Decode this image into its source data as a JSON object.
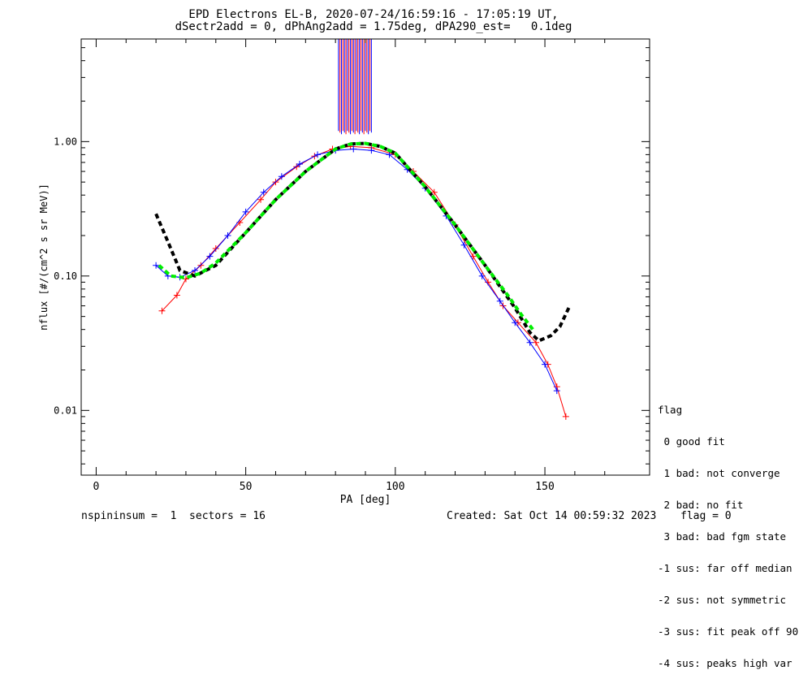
{
  "chart_data": {
    "type": "line",
    "title": "EPD Electrons EL-B, 2020-07-24/16:59:16 - 17:05:19 UT,",
    "subtitle": "dSectr2add = 0, dPhAng2add = 1.75deg, dPA290_est=   0.1deg",
    "xlabel": "PA [deg]",
    "ylabel": "nflux [#/(cm^2 s sr MeV)]",
    "xlim": [
      -5,
      185
    ],
    "ylim": [
      0.0033,
      5.8
    ],
    "yscale": "log",
    "xticks": [
      0,
      50,
      100,
      150
    ],
    "xtick_labels": [
      "0",
      "50",
      "100",
      "150"
    ],
    "yticks": [
      0.01,
      0.1,
      1.0
    ],
    "ytick_labels": [
      "0.01",
      "0.10",
      "1.00"
    ],
    "grid": false,
    "series": [
      {
        "color": "#ff0000",
        "marker": "+",
        "x": [
          22,
          27,
          30,
          35,
          40,
          48,
          55,
          60,
          67,
          73,
          79,
          85,
          92,
          100,
          106,
          113,
          120,
          126,
          131,
          136,
          141,
          147,
          151,
          154,
          157
        ],
        "y": [
          0.055,
          0.072,
          0.095,
          0.12,
          0.16,
          0.25,
          0.37,
          0.5,
          0.65,
          0.78,
          0.88,
          0.92,
          0.9,
          0.8,
          0.6,
          0.42,
          0.24,
          0.14,
          0.09,
          0.06,
          0.045,
          0.032,
          0.022,
          0.015,
          0.009
        ]
      },
      {
        "color": "#0000ff",
        "marker": "+",
        "x": [
          20,
          24,
          28,
          33,
          38,
          44,
          50,
          56,
          62,
          68,
          74,
          80,
          86,
          92,
          98,
          104,
          110,
          117,
          123,
          129,
          135,
          140,
          145,
          150,
          154
        ],
        "y": [
          0.12,
          0.1,
          0.098,
          0.11,
          0.14,
          0.2,
          0.3,
          0.42,
          0.55,
          0.68,
          0.8,
          0.86,
          0.88,
          0.86,
          0.8,
          0.62,
          0.45,
          0.28,
          0.17,
          0.1,
          0.065,
          0.045,
          0.032,
          0.022,
          0.014
        ]
      },
      {
        "color": "#000000",
        "style": "dashed",
        "x": [
          20,
          24,
          28,
          33,
          40,
          50,
          60,
          70,
          80,
          85,
          90,
          95,
          100,
          110,
          120,
          130,
          140,
          145,
          148,
          152,
          155,
          158
        ],
        "y": [
          0.29,
          0.18,
          0.11,
          0.1,
          0.12,
          0.21,
          0.37,
          0.6,
          0.88,
          0.96,
          0.97,
          0.92,
          0.82,
          0.46,
          0.24,
          0.12,
          0.058,
          0.038,
          0.033,
          0.036,
          0.042,
          0.058
        ]
      },
      {
        "color": "#00ee00",
        "style": "dashed",
        "x": [
          21,
          25,
          30,
          35,
          40,
          50,
          60,
          70,
          80,
          85,
          90,
          95,
          100,
          110,
          120,
          130,
          138,
          142,
          146
        ],
        "y": [
          0.12,
          0.1,
          0.097,
          0.105,
          0.125,
          0.21,
          0.37,
          0.6,
          0.88,
          0.96,
          0.97,
          0.92,
          0.82,
          0.46,
          0.24,
          0.12,
          0.07,
          0.052,
          0.04
        ]
      }
    ],
    "vertical_lines": {
      "x_range": [
        81,
        92
      ]
    },
    "legend": {
      "placement": "outside-right",
      "title": "flag",
      "entries": [
        " 0 good fit",
        " 1 bad: not converge",
        " 2 bad: no fit",
        " 3 bad: bad fgm state",
        "-1 sus: far off median",
        "-2 sus: not symmetric",
        "-3 sus: fit peak off 90",
        "-4 sus: peaks high var"
      ]
    }
  },
  "footer": {
    "left": "nspininsum =  1  sectors = 16",
    "middle": "Created: Sat Oct 14 00:59:32 2023",
    "right": "flag = 0"
  }
}
